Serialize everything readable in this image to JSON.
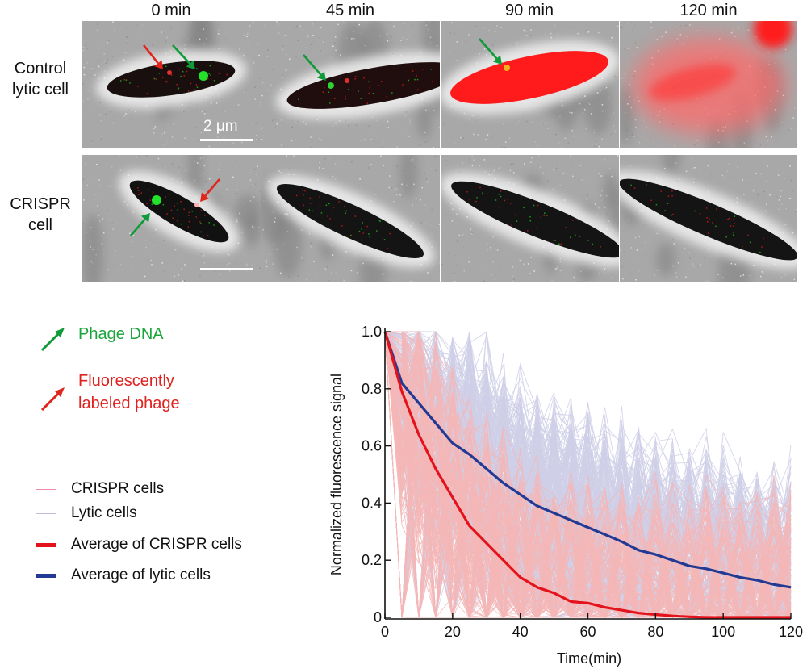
{
  "figure": {
    "time_labels": [
      "0 min",
      "45 min",
      "90 min",
      "120 min"
    ],
    "rows": [
      {
        "label_line1": "Control",
        "label_line2": "lytic cell"
      },
      {
        "label_line1": "CRISPR",
        "label_line2": "cell"
      }
    ],
    "scale_bar_label": "2 μm",
    "arrow_legend": [
      {
        "icon": "green-arrow-icon",
        "text_lines": [
          "Phage DNA"
        ],
        "color": "#1aa53a"
      },
      {
        "icon": "red-arrow-icon",
        "text_lines": [
          "Fluorescently",
          "labeled phage"
        ],
        "color": "#e0211d"
      }
    ],
    "colors": {
      "phage_dna_arrow": "#119a3a",
      "labeled_phage_arrow": "#e0251d",
      "crispr_cells": "#f4b6b6",
      "lytic_cells": "#cfcfe8",
      "avg_crispr": "#e3121b",
      "avg_lytic": "#233a94"
    }
  },
  "chart_data": {
    "type": "line",
    "title": "",
    "xlabel": "Time(min)",
    "ylabel": "Normalized fluorescence signal",
    "xlim": [
      0,
      120
    ],
    "ylim": [
      0,
      1.0
    ],
    "x_ticks": [
      0,
      20,
      40,
      60,
      80,
      100,
      120
    ],
    "x_tick_labels": [
      "0",
      "20",
      "40",
      "60",
      "80",
      "100",
      "120"
    ],
    "y_ticks": [
      0,
      0.2,
      0.4,
      0.6,
      0.8,
      1.0
    ],
    "y_tick_labels": [
      "0",
      "0.2",
      "0.4",
      "0.6",
      "0.8",
      "1.0"
    ],
    "grid": false,
    "legend_placement": "left-outside",
    "legend": [
      {
        "label": "CRISPR cells",
        "color": "#f4a9b4",
        "style": "thin"
      },
      {
        "label": "Lytic cells",
        "color": "#c8c8e6",
        "style": "thin"
      },
      {
        "label": "Average of CRISPR cells",
        "color": "#e3121b",
        "style": "thick"
      },
      {
        "label": "Average of lytic cells",
        "color": "#233a94",
        "style": "thick"
      }
    ],
    "x": [
      0,
      5,
      10,
      15,
      20,
      25,
      30,
      35,
      40,
      45,
      50,
      55,
      60,
      65,
      70,
      75,
      80,
      85,
      90,
      95,
      100,
      105,
      110,
      115,
      120
    ],
    "series": [
      {
        "name": "Average of lytic cells",
        "color": "#233a94",
        "values": [
          1.0,
          0.82,
          0.75,
          0.68,
          0.61,
          0.57,
          0.52,
          0.47,
          0.43,
          0.39,
          0.365,
          0.34,
          0.315,
          0.29,
          0.265,
          0.235,
          0.22,
          0.2,
          0.18,
          0.17,
          0.155,
          0.14,
          0.13,
          0.115,
          0.105
        ]
      },
      {
        "name": "Average of CRISPR cells",
        "color": "#e3121b",
        "values": [
          1.0,
          0.79,
          0.64,
          0.52,
          0.42,
          0.32,
          0.26,
          0.2,
          0.14,
          0.105,
          0.085,
          0.055,
          0.05,
          0.035,
          0.025,
          0.015,
          0.01,
          0.005,
          0.002,
          0.0,
          0.0,
          0.0,
          0.0,
          0.0,
          0.0
        ]
      }
    ],
    "individual_traces": {
      "crispr_cells": {
        "name": "CRISPR cells",
        "color": "#f4b6b6",
        "count_approx": 150,
        "note": "many thin traces decaying faster than lytic"
      },
      "lytic_cells": {
        "name": "Lytic cells",
        "color": "#cfcfe8",
        "count_approx": 250,
        "note": "many thin traces, slow decay, up to ~0.95 late"
      }
    }
  }
}
